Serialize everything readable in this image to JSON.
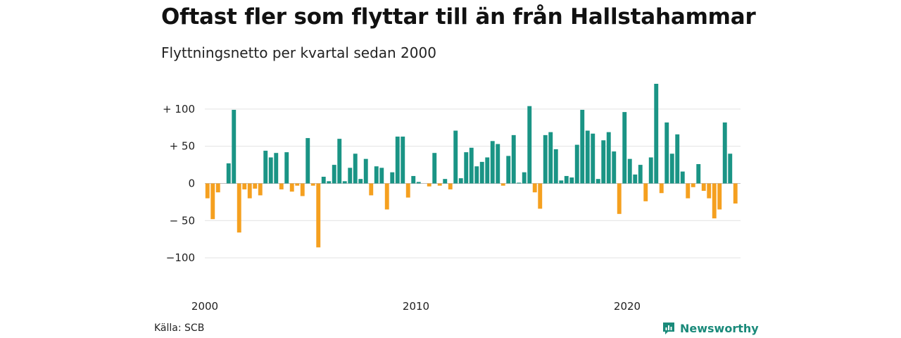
{
  "chart_data": {
    "type": "bar",
    "title": "Oftast fler som flyttar till än från Hallstahammar",
    "subtitle": "Flyttningsnetto per kvartal sedan 2000",
    "xlabel": "",
    "ylabel": "",
    "ylim": [
      -130,
      140
    ],
    "xlim": [
      2000,
      2026
    ],
    "y_ticks": [
      {
        "value": 100,
        "label": "+ 100"
      },
      {
        "value": 50,
        "label": "+  50"
      },
      {
        "value": 0,
        "label": "0"
      },
      {
        "value": -50,
        "label": "− 50"
      },
      {
        "value": -100,
        "label": "−100"
      }
    ],
    "x_ticks": [
      {
        "value": 2000,
        "label": "2000"
      },
      {
        "value": 2010,
        "label": "2010"
      },
      {
        "value": 2020,
        "label": "2020"
      }
    ],
    "grid": true,
    "legend": "none",
    "positive_color": "#1a9485",
    "negative_color": "#f5a01f",
    "start": "2000 Q1",
    "values": [
      -20,
      -48,
      -12,
      0,
      27,
      99,
      -66,
      -8,
      -20,
      -7,
      -16,
      44,
      35,
      41,
      -8,
      42,
      -11,
      -3,
      -17,
      61,
      -3,
      -86,
      9,
      3,
      25,
      60,
      3,
      21,
      40,
      6,
      33,
      -16,
      23,
      21,
      -35,
      15,
      63,
      63,
      -19,
      10,
      2,
      0,
      -4,
      41,
      -3,
      6,
      -8,
      71,
      7,
      42,
      48,
      23,
      29,
      35,
      57,
      53,
      -3,
      37,
      65,
      1,
      15,
      104,
      -12,
      -34,
      65,
      69,
      46,
      4,
      10,
      8,
      52,
      99,
      71,
      67,
      6,
      58,
      69,
      43,
      -41,
      96,
      33,
      12,
      25,
      -24,
      35,
      134,
      -13,
      82,
      40,
      66,
      16,
      -20,
      -5,
      26,
      -10,
      -20,
      -47,
      -35,
      82,
      40,
      -27
    ]
  },
  "source_label": "Källa: SCB",
  "brand": {
    "name": "Newsworthy",
    "icon": "newsworthy-logo-icon",
    "color": "#1a8a7a"
  }
}
